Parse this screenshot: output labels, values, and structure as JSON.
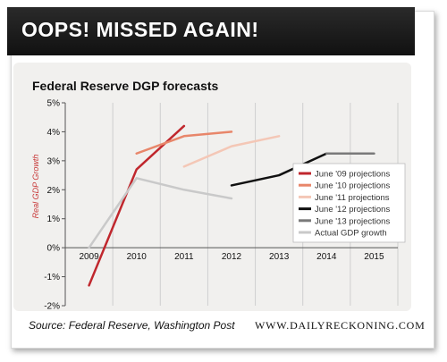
{
  "header": {
    "title": "OOPS! MISSED AGAIN!"
  },
  "source": "Source: Federal Reserve, Washington Post",
  "brand": "WWW.DAILYRECKONING.COM",
  "chart_data": {
    "type": "line",
    "title": "Federal Reserve DGP forecasts",
    "xlabel": "",
    "ylabel": "Real GDP Growth",
    "x_ticks": [
      2009,
      2010,
      2011,
      2012,
      2013,
      2014,
      2015
    ],
    "y_ticks": [
      "5%",
      "4%",
      "3%",
      "2%",
      "1%",
      "0%",
      "-1%",
      "-2%"
    ],
    "ylim": [
      -2,
      5
    ],
    "xlim": [
      2008.5,
      2015.5
    ],
    "grid": "vertical",
    "legend_position": "right",
    "series": [
      {
        "name": "June '09 projections",
        "color": "#c0272d",
        "x": [
          2009,
          2010,
          2011
        ],
        "values": [
          -1.3,
          2.7,
          4.2
        ]
      },
      {
        "name": "June '10 projections",
        "color": "#e8866a",
        "x": [
          2010,
          2011,
          2012
        ],
        "values": [
          3.25,
          3.85,
          4.0
        ]
      },
      {
        "name": "June '11 projections",
        "color": "#f4c7b6",
        "x": [
          2011,
          2012,
          2013
        ],
        "values": [
          2.8,
          3.5,
          3.85
        ]
      },
      {
        "name": "June '12 projections",
        "color": "#111111",
        "x": [
          2012,
          2013,
          2014
        ],
        "values": [
          2.15,
          2.5,
          3.25
        ]
      },
      {
        "name": "June '13 projections",
        "color": "#7a7a7a",
        "x": [
          2014,
          2015
        ],
        "values": [
          3.25,
          3.25
        ]
      },
      {
        "name": "Actual GDP growth",
        "color": "#c9c9c9",
        "x": [
          2009,
          2010,
          2011,
          2012
        ],
        "values": [
          0.0,
          2.4,
          2.0,
          1.7
        ]
      }
    ]
  }
}
